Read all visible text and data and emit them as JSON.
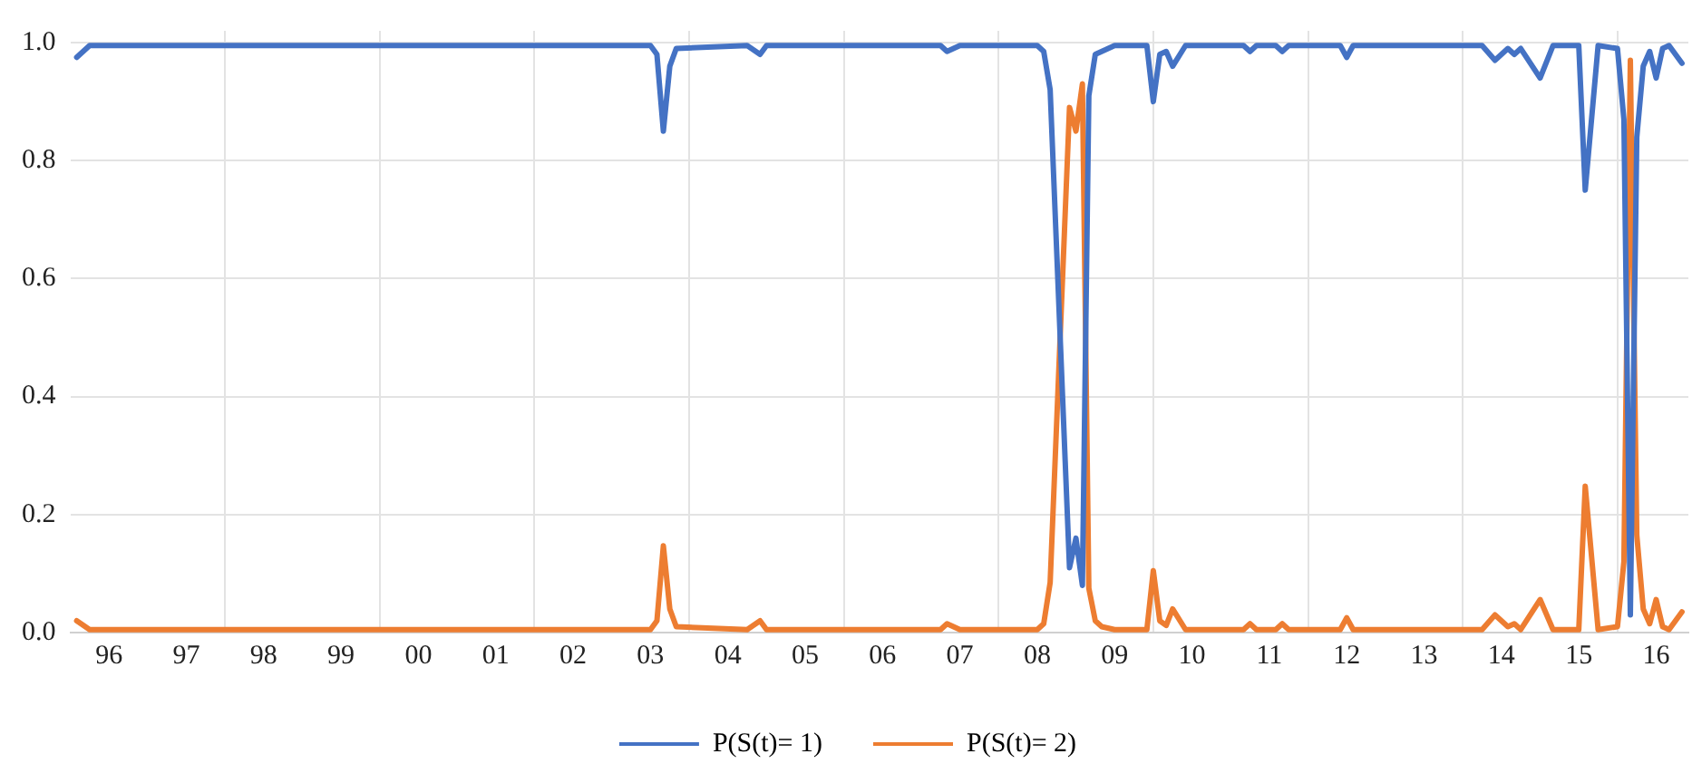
{
  "chart_data": {
    "type": "line",
    "x": [
      "1996-02",
      "1996-04",
      "1997-01",
      "1998-01",
      "2000-01",
      "2002-01",
      "2003-07",
      "2003-08",
      "2003-09",
      "2003-10",
      "2003-11",
      "2004-10",
      "2004-12",
      "2005-01",
      "2007-04",
      "2007-05",
      "2007-07",
      "2008-07",
      "2008-08",
      "2008-09",
      "2008-12",
      "2009-01",
      "2009-02",
      "2009-03",
      "2009-04",
      "2009-05",
      "2009-07",
      "2009-12",
      "2010-01",
      "2010-02",
      "2010-03",
      "2010-04",
      "2010-06",
      "2011-03",
      "2011-04",
      "2011-05",
      "2011-08",
      "2011-09",
      "2011-10",
      "2012-06",
      "2012-07",
      "2012-08",
      "2014-04",
      "2014-06",
      "2014-08",
      "2014-09",
      "2014-10",
      "2015-01",
      "2015-03",
      "2015-07",
      "2015-08",
      "2015-10",
      "2016-01",
      "2016-02",
      "2016-03",
      "2016-04",
      "2016-05",
      "2016-06",
      "2016-07",
      "2016-08",
      "2016-09",
      "2016-11"
    ],
    "series": [
      {
        "name": "P(S(t)= 1)",
        "color": "#4472c4",
        "values": [
          0.975,
          0.995,
          0.995,
          0.995,
          0.995,
          0.995,
          0.995,
          0.98,
          0.85,
          0.96,
          0.99,
          0.995,
          0.98,
          0.995,
          0.995,
          0.985,
          0.995,
          0.995,
          0.985,
          0.92,
          0.11,
          0.16,
          0.08,
          0.91,
          0.98,
          0.985,
          0.995,
          0.995,
          0.9,
          0.98,
          0.985,
          0.96,
          0.995,
          0.995,
          0.985,
          0.995,
          0.995,
          0.985,
          0.995,
          0.995,
          0.975,
          0.995,
          0.995,
          0.97,
          0.99,
          0.98,
          0.99,
          0.94,
          0.995,
          0.995,
          0.75,
          0.995,
          0.99,
          0.87,
          0.03,
          0.84,
          0.96,
          0.985,
          0.94,
          0.99,
          0.995,
          0.965
        ]
      },
      {
        "name": "P(S(t)= 2)",
        "color": "#ed7d31",
        "values": [
          0.02,
          0.005,
          0.005,
          0.005,
          0.005,
          0.005,
          0.005,
          0.02,
          0.147,
          0.04,
          0.01,
          0.005,
          0.02,
          0.005,
          0.005,
          0.015,
          0.005,
          0.005,
          0.015,
          0.085,
          0.89,
          0.85,
          0.93,
          0.075,
          0.02,
          0.01,
          0.005,
          0.005,
          0.105,
          0.02,
          0.012,
          0.04,
          0.005,
          0.005,
          0.015,
          0.005,
          0.005,
          0.015,
          0.005,
          0.005,
          0.025,
          0.005,
          0.005,
          0.03,
          0.01,
          0.015,
          0.005,
          0.056,
          0.005,
          0.005,
          0.248,
          0.005,
          0.01,
          0.12,
          0.97,
          0.165,
          0.04,
          0.015,
          0.056,
          0.01,
          0.005,
          0.035
        ]
      }
    ],
    "xlim": [
      "1996-01",
      "2016-12"
    ],
    "xticks": [
      {
        "value": "1996-07",
        "label": "96"
      },
      {
        "value": "1997-07",
        "label": "97"
      },
      {
        "value": "1998-01",
        "label": null
      },
      {
        "value": "1998-07",
        "label": "98"
      },
      {
        "value": "1999-07",
        "label": "99"
      },
      {
        "value": "2000-01",
        "label": null
      },
      {
        "value": "2000-07",
        "label": "00"
      },
      {
        "value": "2001-07",
        "label": "01"
      },
      {
        "value": "2002-01",
        "label": null
      },
      {
        "value": "2002-07",
        "label": "02"
      },
      {
        "value": "2003-07",
        "label": "03"
      },
      {
        "value": "2004-01",
        "label": null
      },
      {
        "value": "2004-07",
        "label": "04"
      },
      {
        "value": "2005-07",
        "label": "05"
      },
      {
        "value": "2006-01",
        "label": null
      },
      {
        "value": "2006-07",
        "label": "06"
      },
      {
        "value": "2007-07",
        "label": "07"
      },
      {
        "value": "2008-01",
        "label": null
      },
      {
        "value": "2008-07",
        "label": "08"
      },
      {
        "value": "2009-07",
        "label": "09"
      },
      {
        "value": "2010-01",
        "label": null
      },
      {
        "value": "2010-07",
        "label": "10"
      },
      {
        "value": "2011-07",
        "label": "11"
      },
      {
        "value": "2012-01",
        "label": null
      },
      {
        "value": "2012-07",
        "label": "12"
      },
      {
        "value": "2013-07",
        "label": "13"
      },
      {
        "value": "2014-01",
        "label": null
      },
      {
        "value": "2014-07",
        "label": "14"
      },
      {
        "value": "2015-07",
        "label": "15"
      },
      {
        "value": "2016-01",
        "label": null
      },
      {
        "value": "2016-07",
        "label": "16"
      }
    ],
    "ylim": [
      0,
      1.02
    ],
    "yticks": [
      {
        "value": 0,
        "label": "0.0"
      },
      {
        "value": 0.2,
        "label": "0.2"
      },
      {
        "value": 0.4,
        "label": "0.4"
      },
      {
        "value": 0.6,
        "label": "0.6"
      },
      {
        "value": 0.8,
        "label": "0.8"
      },
      {
        "value": 1.0,
        "label": "1.0"
      }
    ],
    "grid": true,
    "legend": "bottom",
    "marker": "none",
    "line_style": "solid"
  }
}
